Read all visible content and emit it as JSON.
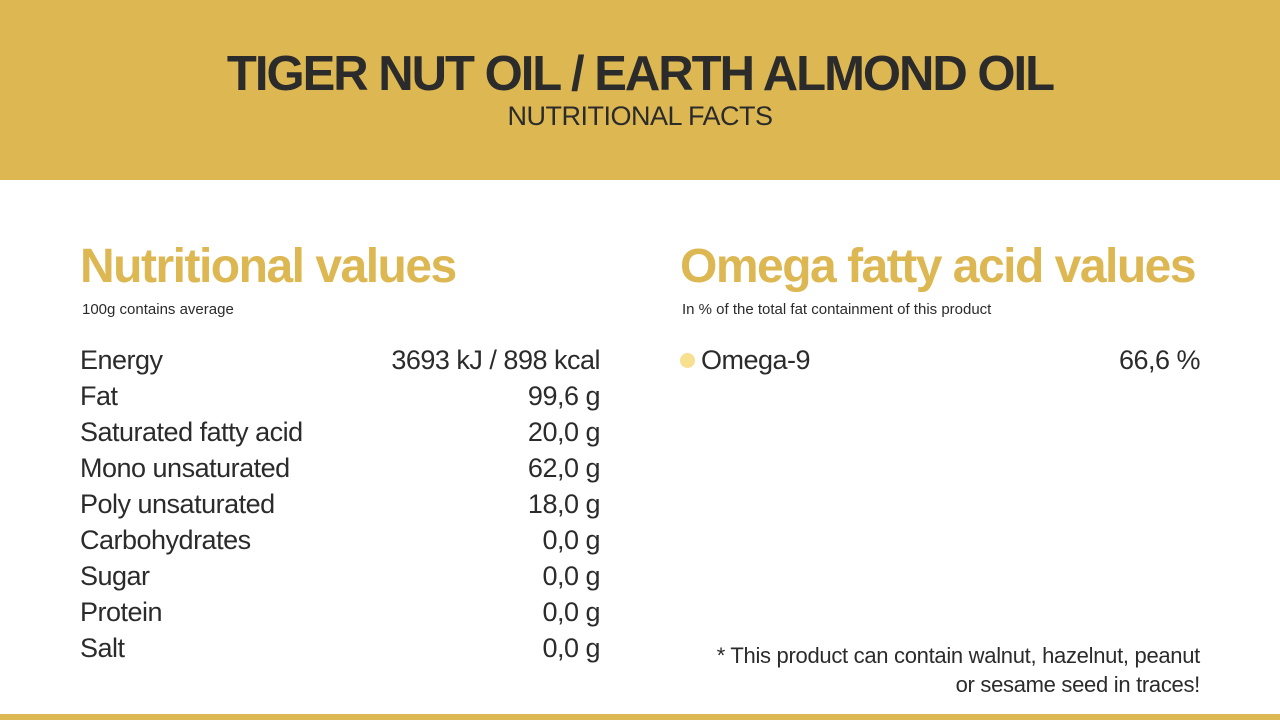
{
  "header": {
    "title": "TIGER NUT OIL / EARTH ALMOND OIL",
    "subtitle": "NUTRITIONAL FACTS"
  },
  "nutritional": {
    "title": "Nutritional values",
    "note": "100g contains average",
    "rows": [
      {
        "label": "Energy",
        "value": "3693 kJ / 898 kcal"
      },
      {
        "label": "Fat",
        "value": "99,6 g"
      },
      {
        "label": "Saturated fatty acid",
        "value": "20,0 g"
      },
      {
        "label": "Mono unsaturated",
        "value": "62,0 g"
      },
      {
        "label": "Poly unsaturated",
        "value": "18,0 g"
      },
      {
        "label": "Carbohydrates",
        "value": "0,0 g"
      },
      {
        "label": "Sugar",
        "value": "0,0 g"
      },
      {
        "label": "Protein",
        "value": "0,0 g"
      },
      {
        "label": "Salt",
        "value": "0,0 g"
      }
    ]
  },
  "omega": {
    "title": "Omega fatty acid values",
    "note": "In % of the total fat containment of this product",
    "rows": [
      {
        "label": "Omega-9",
        "value": "66,6 %"
      }
    ]
  },
  "footnote": {
    "line1": "* This product can contain walnut, hazelnut, peanut",
    "line2": "or sesame seed in traces!"
  },
  "colors": {
    "accent": "#dcb752",
    "text": "#2b2b2b",
    "omega_dot": "#f7e08f"
  }
}
